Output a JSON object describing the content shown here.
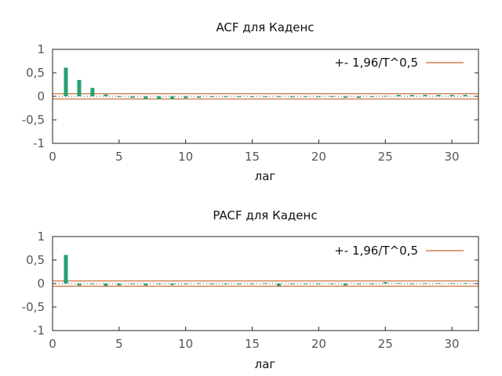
{
  "colors": {
    "bar": "#2aa074",
    "band": "#c8642a",
    "zero": "#444444",
    "frame": "#222222",
    "text": "#555555"
  },
  "chart_data": [
    {
      "type": "bar",
      "title": "ACF для Каденс",
      "xlabel": "лаг",
      "ylabel": "",
      "xlim": [
        0,
        32
      ],
      "ylim": [
        -1,
        1
      ],
      "xticks": [
        0,
        5,
        10,
        15,
        20,
        25,
        30
      ],
      "yticks": [
        1,
        0.5,
        0,
        -0.5,
        -1
      ],
      "ytick_labels": [
        "1",
        "0,5",
        "0",
        "-0,5",
        "-1"
      ],
      "band": 0.055,
      "legend": {
        "label": "+- 1,96/T^0,5",
        "position": "top-right"
      },
      "lags": [
        1,
        2,
        3,
        4,
        5,
        6,
        7,
        8,
        9,
        10,
        11,
        12,
        13,
        14,
        15,
        16,
        17,
        18,
        19,
        20,
        21,
        22,
        23,
        24,
        25,
        26,
        27,
        28,
        29,
        30,
        31
      ],
      "values": [
        0.61,
        0.35,
        0.18,
        0.04,
        -0.01,
        -0.03,
        -0.06,
        -0.06,
        -0.06,
        -0.04,
        -0.03,
        -0.01,
        0.0,
        -0.01,
        0.0,
        -0.01,
        0.0,
        -0.02,
        -0.01,
        0.0,
        -0.01,
        -0.03,
        -0.03,
        0.0,
        0.01,
        0.03,
        0.03,
        0.03,
        0.03,
        0.03,
        0.03
      ]
    },
    {
      "type": "bar",
      "title": "PACF для Каденс",
      "xlabel": "лаг",
      "ylabel": "",
      "xlim": [
        0,
        32
      ],
      "ylim": [
        -1,
        1
      ],
      "xticks": [
        0,
        5,
        10,
        15,
        20,
        25,
        30
      ],
      "yticks": [
        1,
        0.5,
        0,
        -0.5,
        -1
      ],
      "ytick_labels": [
        "1",
        "0,5",
        "0",
        "-0,5",
        "-1"
      ],
      "band": 0.055,
      "legend": {
        "label": "+- 1,96/T^0,5",
        "position": "top-right"
      },
      "lags": [
        1,
        2,
        3,
        4,
        5,
        6,
        7,
        8,
        9,
        10,
        11,
        12,
        13,
        14,
        15,
        16,
        17,
        18,
        19,
        20,
        21,
        22,
        23,
        24,
        25,
        26,
        27,
        28,
        29,
        30,
        31
      ],
      "values": [
        0.61,
        -0.04,
        -0.01,
        -0.05,
        -0.04,
        -0.01,
        -0.04,
        0.0,
        -0.03,
        -0.01,
        0.01,
        0.0,
        -0.01,
        -0.02,
        -0.01,
        0.01,
        -0.05,
        0.0,
        0.0,
        -0.01,
        0.0,
        -0.04,
        0.0,
        -0.01,
        0.03,
        0.01,
        0.0,
        0.01,
        0.01,
        0.01,
        0.01
      ]
    }
  ]
}
